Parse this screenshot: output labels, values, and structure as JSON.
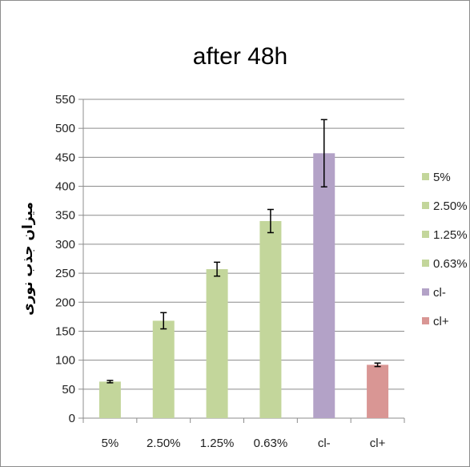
{
  "chart_data": {
    "type": "bar",
    "title": "after 48h",
    "ylabel": "میزان جذب نوری",
    "xlabel": "",
    "categories": [
      "5%",
      "2.50%",
      "1.25%",
      "0.63%",
      "cl-",
      "cl+"
    ],
    "values": [
      63,
      168,
      257,
      340,
      457,
      92
    ],
    "errors": [
      2,
      14,
      12,
      20,
      58,
      3
    ],
    "colors": [
      "#c3d69b",
      "#c3d69b",
      "#c3d69b",
      "#c3d69b",
      "#b3a2c7",
      "#d99694"
    ],
    "ylim": [
      0,
      550
    ],
    "yticks": [
      0,
      50,
      100,
      150,
      200,
      250,
      300,
      350,
      400,
      450,
      500,
      550
    ],
    "grid": "horizontal",
    "legend": {
      "placement": "right",
      "entries": [
        {
          "label": "5%",
          "color": "#c3d69b"
        },
        {
          "label": "2.50%",
          "color": "#c3d69b"
        },
        {
          "label": "1.25%",
          "color": "#c3d69b"
        },
        {
          "label": "0.63%",
          "color": "#c3d69b"
        },
        {
          "label": "cl-",
          "color": "#b3a2c7"
        },
        {
          "label": "cl+",
          "color": "#d99694"
        }
      ]
    }
  }
}
